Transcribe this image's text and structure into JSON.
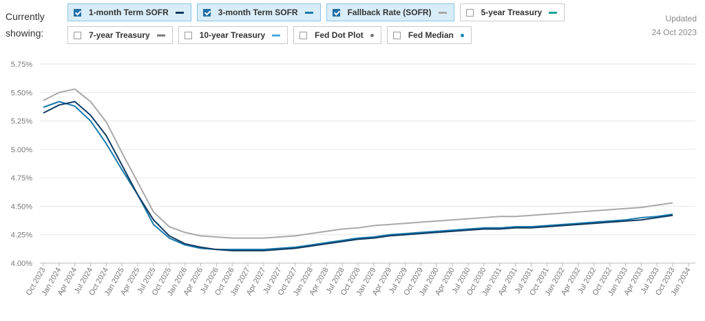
{
  "header": {
    "showing_label": "Currently showing:",
    "updated_label": "Updated",
    "updated_date": "24 Oct 2023"
  },
  "chart_data": {
    "type": "line",
    "categories": [
      "Oct 2023",
      "Jan 2024",
      "Apr 2024",
      "Jul 2024",
      "Oct 2024",
      "Jan 2025",
      "Apr 2025",
      "Jul 2025",
      "Oct 2025",
      "Jan 2026",
      "Apr 2026",
      "Jul 2026",
      "Oct 2026",
      "Jan 2027",
      "Apr 2027",
      "Jul 2027",
      "Oct 2027",
      "Jan 2028",
      "Apr 2028",
      "Jul 2028",
      "Oct 2028",
      "Jan 2029",
      "Apr 2029",
      "Jul 2029",
      "Oct 2029",
      "Jan 2030",
      "Apr 2030",
      "Jul 2030",
      "Oct 2030",
      "Jan 2031",
      "Apr 2031",
      "Jul 2031",
      "Oct 2031",
      "Jan 2032",
      "Apr 2032",
      "Jul 2032",
      "Oct 2032",
      "Jan 2033",
      "Apr 2033",
      "Jul 2033",
      "Oct 2033",
      "Jan 2034"
    ],
    "series": [
      {
        "name": "1-month Term SOFR",
        "color": "#0e3a62",
        "checked": true,
        "marker": "line",
        "values": [
          5.32,
          5.39,
          5.42,
          5.3,
          5.12,
          4.86,
          4.6,
          4.38,
          4.24,
          4.17,
          4.14,
          4.12,
          4.11,
          4.11,
          4.11,
          4.12,
          4.13,
          4.15,
          4.17,
          4.19,
          4.21,
          4.22,
          4.24,
          4.25,
          4.26,
          4.27,
          4.28,
          4.29,
          4.3,
          4.3,
          4.31,
          4.31,
          4.32,
          4.33,
          4.34,
          4.35,
          4.36,
          4.37,
          4.38,
          4.4,
          4.42,
          null
        ]
      },
      {
        "name": "3-month Term SOFR",
        "color": "#1879ad",
        "checked": true,
        "marker": "line",
        "values": [
          5.37,
          5.42,
          5.38,
          5.25,
          5.05,
          4.82,
          4.6,
          4.34,
          4.22,
          4.16,
          4.13,
          4.12,
          4.12,
          4.12,
          4.12,
          4.13,
          4.14,
          4.16,
          4.18,
          4.2,
          4.22,
          4.23,
          4.25,
          4.26,
          4.27,
          4.28,
          4.29,
          4.3,
          4.31,
          4.31,
          4.32,
          4.32,
          4.33,
          4.34,
          4.35,
          4.36,
          4.37,
          4.38,
          4.4,
          4.41,
          4.43,
          null
        ]
      },
      {
        "name": "Fallback Rate (SOFR)",
        "color": "#a8a8a8",
        "checked": true,
        "marker": "line",
        "values": [
          5.43,
          5.5,
          5.53,
          5.42,
          5.24,
          4.97,
          4.71,
          4.45,
          4.32,
          4.27,
          4.24,
          4.23,
          4.22,
          4.22,
          4.22,
          4.23,
          4.24,
          4.26,
          4.28,
          4.3,
          4.31,
          4.33,
          4.34,
          4.35,
          4.36,
          4.37,
          4.38,
          4.39,
          4.4,
          4.41,
          4.41,
          4.42,
          4.43,
          4.44,
          4.45,
          4.46,
          4.47,
          4.48,
          4.49,
          4.51,
          4.53,
          null
        ]
      }
    ],
    "hidden_series": [
      {
        "name": "5-year Treasury",
        "color": "#17a79a",
        "checked": false,
        "marker": "line"
      },
      {
        "name": "7-year Treasury",
        "color": "#7a7a7a",
        "checked": false,
        "marker": "line"
      },
      {
        "name": "10-year Treasury",
        "color": "#4aaadc",
        "checked": false,
        "marker": "line"
      },
      {
        "name": "Fed Dot Plot",
        "color": "#7a7a7a",
        "checked": false,
        "marker": "dot"
      },
      {
        "name": "Fed Median",
        "color": "#1a86b5",
        "checked": false,
        "marker": "dot"
      }
    ],
    "ylim": [
      4.0,
      5.75
    ],
    "yticks": [
      {
        "value": 4.0,
        "label": "4.00%"
      },
      {
        "value": 4.25,
        "label": "4.25%"
      },
      {
        "value": 4.5,
        "label": "4.50%"
      },
      {
        "value": 4.75,
        "label": "4.75%"
      },
      {
        "value": 5.0,
        "label": "5.00%"
      },
      {
        "value": 5.25,
        "label": "5.25%"
      },
      {
        "value": 5.5,
        "label": "5.50%"
      },
      {
        "value": 5.75,
        "label": "5.75%"
      }
    ],
    "grid": true
  }
}
